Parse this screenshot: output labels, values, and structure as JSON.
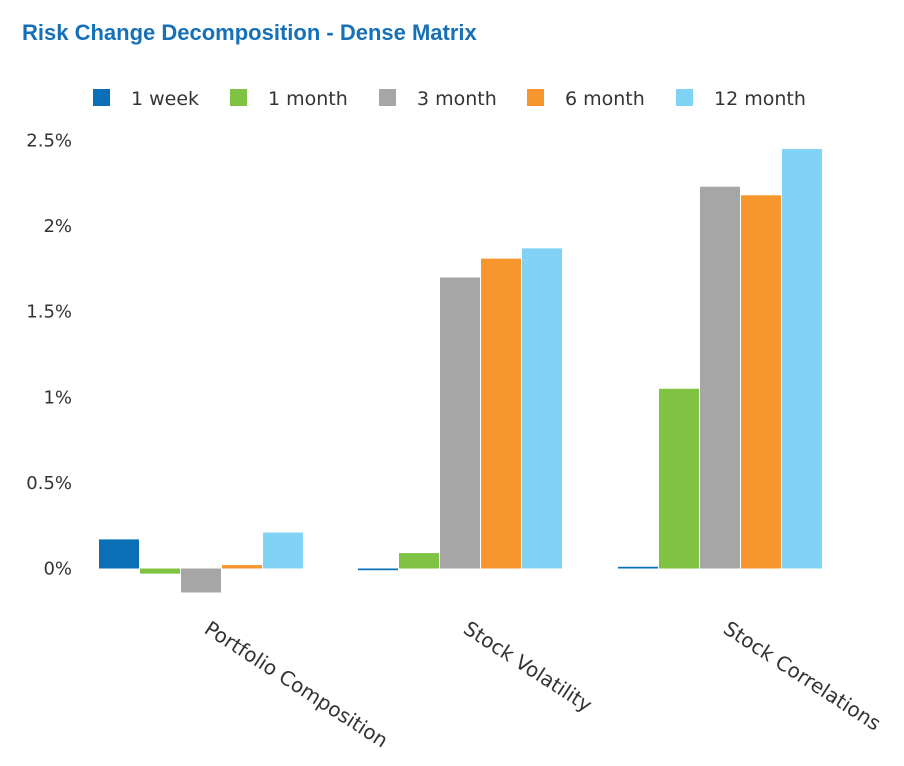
{
  "chart_data": {
    "type": "bar",
    "title": "Risk Change Decomposition - Dense Matrix",
    "xlabel": "",
    "ylabel": "",
    "categories": [
      "Portfolio Composition",
      "Stock Volatility",
      "Stock Correlations"
    ],
    "series": [
      {
        "name": "1 week",
        "color": "#0a6fb7",
        "values": [
          0.17,
          -0.01,
          0.01
        ]
      },
      {
        "name": "1 month",
        "color": "#80c342",
        "values": [
          -0.03,
          0.09,
          1.05
        ]
      },
      {
        "name": "3 month",
        "color": "#a6a6a6",
        "values": [
          -0.14,
          1.7,
          2.23
        ]
      },
      {
        "name": "6 month",
        "color": "#f7962d",
        "values": [
          0.02,
          1.81,
          2.18
        ]
      },
      {
        "name": "12 month",
        "color": "#81d3f6",
        "values": [
          0.21,
          1.87,
          2.45
        ]
      }
    ],
    "ylim": [
      0,
      2.5
    ],
    "yticks": [
      "0%",
      "0.5%",
      "1%",
      "1.5%",
      "2%",
      "2.5%"
    ],
    "grid": false,
    "legend_position": "top"
  }
}
